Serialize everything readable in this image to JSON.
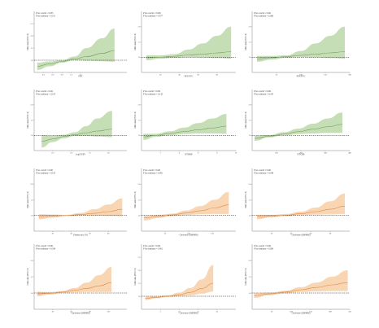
{
  "chart_data": [
    {
      "type": "area",
      "panel": "A1",
      "theme": "green",
      "p_overall": "P for overall = 0.035",
      "p_nonlinear": "P for nonlinear = 0.011",
      "xlabel": "FEV",
      "ylabel": "Odds ratio (95% CI)",
      "xlim": [
        0,
        3
      ],
      "xticks": [
        "0.3",
        "0.6",
        "0.9",
        "1.2",
        "1.5"
      ],
      "ylim": [
        0.5,
        3
      ],
      "yticks": [
        "1.0",
        "1.5",
        "2.0",
        "2.5"
      ],
      "x": [
        0.1,
        0.5,
        0.9,
        1.3,
        1.7,
        2.2,
        2.6
      ],
      "y": [
        0.75,
        0.85,
        0.95,
        1.05,
        1.15,
        1.28,
        1.4
      ],
      "lower": [
        0.6,
        0.75,
        0.9,
        1.0,
        0.98,
        0.96,
        0.94
      ],
      "upper": [
        0.9,
        0.95,
        1.0,
        1.15,
        1.5,
        1.9,
        2.3
      ],
      "ref": 1
    },
    {
      "type": "area",
      "panel": "A2",
      "theme": "green",
      "p_overall": "P for overall = 0.048",
      "p_nonlinear": "P for nonlinear = 0.077",
      "xlabel": "FEV/FVC",
      "ylabel": "Odds ratio (95% CI)",
      "xlim": [
        0,
        100
      ],
      "xticks": [
        "20",
        "40",
        "60",
        "80"
      ],
      "ylim": [
        0.5,
        2.5
      ],
      "yticks": [
        "1.0",
        "1.5",
        "2.0"
      ],
      "x": [
        5,
        20,
        35,
        50,
        65,
        80,
        95
      ],
      "y": [
        0.98,
        1.0,
        1.03,
        1.07,
        1.1,
        1.14,
        1.18
      ],
      "lower": [
        0.9,
        0.95,
        0.98,
        1.0,
        0.99,
        0.97,
        0.95
      ],
      "upper": [
        1.06,
        1.06,
        1.1,
        1.25,
        1.45,
        1.7,
        2.0
      ],
      "ref": 1
    },
    {
      "type": "area",
      "panel": "A3",
      "theme": "green",
      "p_overall": "P for overall = 0.021",
      "p_nonlinear": "P for nonlinear = 0.066",
      "xlabel": "FEV/FVC",
      "ylabel": "Odds ratio (95% CI)",
      "xlim": [
        0,
        200
      ],
      "xticks": [
        "50",
        "100",
        "150",
        "200"
      ],
      "ylim": [
        0.5,
        2.5
      ],
      "yticks": [
        "1.0",
        "1.5",
        "2.0"
      ],
      "x": [
        10,
        40,
        70,
        100,
        130,
        160,
        190
      ],
      "y": [
        0.94,
        0.98,
        1.02,
        1.06,
        1.1,
        1.14,
        1.18
      ],
      "lower": [
        0.85,
        0.92,
        0.98,
        1.0,
        0.99,
        0.97,
        0.95
      ],
      "upper": [
        1.04,
        1.04,
        1.06,
        1.2,
        1.45,
        1.7,
        2.0
      ],
      "ref": 1
    },
    {
      "type": "area",
      "panel": "B1",
      "theme": "green",
      "p_overall": "P for overall = 0.021",
      "p_nonlinear": "P for nonlinear = 0.015",
      "xlabel": "Log10 FEV",
      "ylabel": "Odds ratio (95% CI)",
      "xlim": [
        0,
        2.5
      ],
      "xticks": [
        "0.5",
        "1.0",
        "1.5",
        "2.0"
      ],
      "ylim": [
        0.5,
        2.5
      ],
      "yticks": [
        "1.0",
        "1.5",
        "2.0"
      ],
      "x": [
        0.2,
        0.5,
        0.8,
        1.1,
        1.4,
        1.7,
        2.1
      ],
      "y": [
        0.8,
        0.88,
        0.96,
        1.02,
        1.08,
        1.14,
        1.2
      ],
      "lower": [
        0.6,
        0.78,
        0.9,
        0.98,
        0.98,
        0.96,
        0.94
      ],
      "upper": [
        1.0,
        0.98,
        1.02,
        1.1,
        1.3,
        1.55,
        1.8
      ],
      "ref": 1
    },
    {
      "type": "area",
      "panel": "B2",
      "theme": "green",
      "p_overall": "P for overall < 0.001",
      "p_nonlinear": "P for nonlinear = 0.118",
      "xlabel": "NT-BNP",
      "ylabel": "Odds ratio (95% CI)",
      "xlim": [
        0,
        10
      ],
      "xticks": [
        "2",
        "4",
        "6",
        "8",
        "10"
      ],
      "ylim": [
        0.5,
        2.5
      ],
      "yticks": [
        "1.0",
        "1.5",
        "2.0"
      ],
      "x": [
        0.2,
        1.5,
        3,
        4.5,
        6,
        7.5,
        9
      ],
      "y": [
        0.95,
        1.0,
        1.06,
        1.12,
        1.18,
        1.24,
        1.3
      ],
      "lower": [
        0.85,
        0.95,
        1.0,
        1.04,
        1.06,
        1.06,
        1.05
      ],
      "upper": [
        1.05,
        1.05,
        1.13,
        1.25,
        1.4,
        1.55,
        1.7
      ],
      "ref": 1
    },
    {
      "type": "area",
      "panel": "B3",
      "theme": "green",
      "p_overall": "P for overall < 0.001",
      "p_nonlinear": "P for nonlinear = 0.245",
      "xlabel": "NT-CRP",
      "ylabel": "Odds ratio (95% CI)",
      "xlim": [
        0,
        400
      ],
      "xticks": [
        "100",
        "200",
        "300",
        "400"
      ],
      "ylim": [
        0.5,
        2.5
      ],
      "yticks": [
        "1.0",
        "1.5",
        "2.0"
      ],
      "x": [
        10,
        70,
        130,
        190,
        250,
        310,
        370
      ],
      "y": [
        0.9,
        0.97,
        1.04,
        1.12,
        1.2,
        1.28,
        1.36
      ],
      "lower": [
        0.82,
        0.93,
        1.0,
        1.04,
        1.06,
        1.08,
        1.08
      ],
      "upper": [
        0.98,
        1.01,
        1.1,
        1.22,
        1.38,
        1.55,
        1.75
      ],
      "ref": 1
    },
    {
      "type": "area",
      "panel": "C1",
      "theme": "orange",
      "p_overall": "P for overall < 0.001",
      "p_nonlinear": "P for nonlinear = 0.015",
      "xlabel": "Plasma ratio (%)",
      "ylabel": "Odds ratio (95% CI)",
      "xlim": [
        0,
        100
      ],
      "xticks": [
        "20",
        "40",
        "60",
        "80"
      ],
      "ylim": [
        0.5,
        2.5
      ],
      "yticks": [
        "1.0",
        "1.5",
        "2.0"
      ],
      "x": [
        5,
        20,
        35,
        50,
        65,
        80,
        95
      ],
      "y": [
        0.96,
        0.98,
        1.0,
        1.03,
        1.07,
        1.12,
        1.2
      ],
      "lower": [
        0.88,
        0.93,
        0.98,
        1.0,
        1.0,
        0.99,
        0.98
      ],
      "upper": [
        1.04,
        1.03,
        1.02,
        1.08,
        1.2,
        1.35,
        1.55
      ],
      "ref": 1
    },
    {
      "type": "area",
      "panel": "C2",
      "theme": "orange",
      "p_overall": "P for overall < 0.001",
      "p_nonlinear": "P for nonlinear = 0.081",
      "xlabel": "Cholesterol (MPMM)",
      "ylabel": "Odds ratio (95% CI)",
      "xlim": [
        0,
        200
      ],
      "xticks": [
        "50",
        "100",
        "150"
      ],
      "ylim": [
        0.5,
        2.5
      ],
      "yticks": [
        "1.0",
        "1.5",
        "2.0"
      ],
      "x": [
        5,
        35,
        65,
        95,
        125,
        155,
        185
      ],
      "y": [
        0.92,
        0.97,
        1.02,
        1.08,
        1.15,
        1.24,
        1.34
      ],
      "lower": [
        0.84,
        0.92,
        0.98,
        1.02,
        1.04,
        1.05,
        1.05
      ],
      "upper": [
        1.0,
        1.02,
        1.06,
        1.16,
        1.3,
        1.5,
        1.75
      ],
      "ref": 1
    },
    {
      "type": "area",
      "panel": "C3",
      "theme": "orange",
      "p_overall": "P for overall < 0.001",
      "p_nonlinear": "P for nonlinear = 0.048",
      "xlabel": "Cholesterol (MPMM)",
      "ylabel": "Odds ratio (95% CI)",
      "xlim": [
        0,
        100
      ],
      "xticks": [
        "20",
        "40",
        "60",
        "80"
      ],
      "ylim": [
        0.5,
        2.5
      ],
      "yticks": [
        "1.0",
        "1.5",
        "2.0"
      ],
      "x": [
        5,
        20,
        35,
        50,
        65,
        80,
        95
      ],
      "y": [
        0.95,
        0.98,
        1.01,
        1.06,
        1.12,
        1.2,
        1.3
      ],
      "lower": [
        0.88,
        0.94,
        0.98,
        1.01,
        1.03,
        1.04,
        1.05
      ],
      "upper": [
        1.02,
        1.02,
        1.05,
        1.12,
        1.25,
        1.45,
        1.7
      ],
      "ref": 1
    },
    {
      "type": "area",
      "panel": "D1",
      "theme": "orange",
      "p_overall": "P for overall < 0.001",
      "p_nonlinear": "P for nonlinear = 0.034",
      "xlabel": "Cholesterol (MPMM)",
      "ylabel": "Odds ratio (95% CI)",
      "xlim": [
        0,
        150
      ],
      "xticks": [
        "30",
        "60",
        "90",
        "120"
      ],
      "ylim": [
        0.5,
        2.5
      ],
      "yticks": [
        "1.0",
        "1.5",
        "2.0"
      ],
      "x": [
        5,
        25,
        45,
        65,
        85,
        105,
        125
      ],
      "y": [
        0.97,
        0.99,
        1.03,
        1.08,
        1.14,
        1.22,
        1.32
      ],
      "lower": [
        0.9,
        0.95,
        1.0,
        1.02,
        1.03,
        1.03,
        1.03
      ],
      "upper": [
        1.04,
        1.03,
        1.06,
        1.15,
        1.32,
        1.55,
        1.8
      ],
      "ref": 1
    },
    {
      "type": "area",
      "panel": "D2",
      "theme": "orange",
      "p_overall": "P for overall < 0.001",
      "p_nonlinear": "P for nonlinear = 0.001",
      "xlabel": "Cholesterol (MPMM)",
      "ylabel": "Odds ratio (95% CI)",
      "xlim": [
        0,
        25
      ],
      "xticks": [
        "5",
        "10",
        "15",
        "20"
      ],
      "ylim": [
        0.5,
        3
      ],
      "yticks": [
        "1.0",
        "1.5",
        "2.0",
        "2.5"
      ],
      "x": [
        1,
        4,
        7,
        10,
        13,
        16,
        19
      ],
      "y": [
        0.92,
        0.96,
        1.0,
        1.06,
        1.15,
        1.3,
        1.5
      ],
      "lower": [
        0.85,
        0.92,
        0.97,
        1.0,
        1.03,
        1.1,
        1.18
      ],
      "upper": [
        0.99,
        1.0,
        1.04,
        1.14,
        1.32,
        1.65,
        2.2
      ],
      "ref": 1
    },
    {
      "type": "area",
      "panel": "D3",
      "theme": "orange",
      "p_overall": "P for overall < 0.001",
      "p_nonlinear": "P for nonlinear = 0.006",
      "xlabel": "Cholesterol (MPMM)",
      "ylabel": "Odds ratio (95% CI)",
      "xlim": [
        0,
        250
      ],
      "xticks": [
        "50",
        "100",
        "150",
        "200",
        "250"
      ],
      "ylim": [
        0.5,
        2.5
      ],
      "yticks": [
        "1.0",
        "1.5",
        "2.0"
      ],
      "x": [
        5,
        45,
        85,
        125,
        165,
        205,
        245
      ],
      "y": [
        0.92,
        0.97,
        1.03,
        1.1,
        1.17,
        1.25,
        1.32
      ],
      "lower": [
        0.85,
        0.93,
        0.99,
        1.03,
        1.05,
        1.06,
        1.06
      ],
      "upper": [
        0.99,
        1.01,
        1.07,
        1.18,
        1.32,
        1.5,
        1.7
      ],
      "ref": 1
    }
  ],
  "colors": {
    "green_band": "#bcd8a8",
    "green_line": "#6a9a52",
    "orange_band": "#f8cfa6",
    "orange_line": "#e08a48",
    "ref_line": "#222222",
    "axis": "#666666"
  }
}
